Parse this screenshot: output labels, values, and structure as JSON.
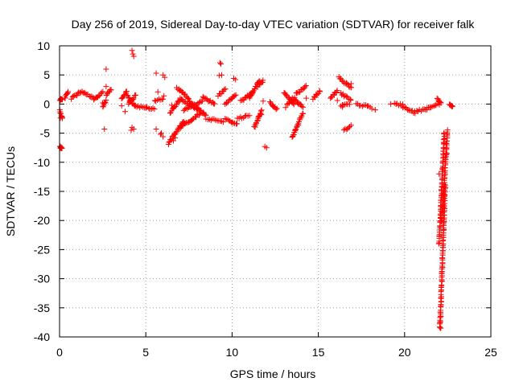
{
  "chart_data": {
    "type": "scatter",
    "title": "Day 256 of 2019, Sidereal Day-to-day VTEC variation (SDTVAR) for receiver falk",
    "xlabel": "GPS time / hours",
    "ylabel": "SDTVAR / TECUs",
    "xlim": [
      0,
      25
    ],
    "ylim": [
      -40,
      10
    ],
    "xticks": [
      0,
      5,
      10,
      15,
      20,
      25
    ],
    "yticks": [
      -40,
      -35,
      -30,
      -25,
      -20,
      -15,
      -10,
      -5,
      0,
      5,
      10
    ],
    "xtick_labels": [
      "0",
      "5",
      "10",
      "15",
      "20",
      "25"
    ],
    "ytick_labels": [
      "-40",
      "-35",
      "-30",
      "-25",
      "-20",
      "-15",
      "-10",
      "-5",
      "0",
      "5",
      "10"
    ],
    "grid": true,
    "marker": "+",
    "marker_color": "#ff0000",
    "series": [
      {
        "name": "SDTVAR",
        "segments": [
          {
            "t0": 0.0,
            "t1": 0.15,
            "v0": 0.6,
            "v1": 0.9
          },
          {
            "t0": 0.02,
            "t1": 0.15,
            "v0": -1.0,
            "v1": -2.6
          },
          {
            "t0": 0.0,
            "t1": 0.15,
            "v0": -7.2,
            "v1": -7.6
          },
          {
            "t0": 0.3,
            "t1": 0.5,
            "v0": 1.0,
            "v1": 2.0
          },
          {
            "t0": 0.7,
            "t1": 1.3,
            "v0": 1.0,
            "v1": 2.2
          },
          {
            "t0": 1.3,
            "t1": 2.0,
            "v0": 2.0,
            "v1": 1.0
          },
          {
            "t0": 2.0,
            "t1": 2.5,
            "v0": 0.8,
            "v1": 2.0
          },
          {
            "t0": 2.5,
            "t1": 2.7,
            "v0": -0.5,
            "v1": 0.5
          },
          {
            "t0": 2.7,
            "t1": 3.0,
            "v0": 1.5,
            "v1": 2.5
          },
          {
            "t0": 3.6,
            "t1": 3.9,
            "v0": 0.8,
            "v1": 2.2
          },
          {
            "t0": 3.9,
            "t1": 4.4,
            "v0": 1.5,
            "v1": -0.5
          },
          {
            "t0": 4.0,
            "t1": 4.4,
            "v0": 0.0,
            "v1": 1.5
          },
          {
            "t0": 4.4,
            "t1": 5.0,
            "v0": -0.3,
            "v1": -0.6
          },
          {
            "t0": 5.0,
            "t1": 5.5,
            "v0": -0.5,
            "v1": -0.9
          },
          {
            "t0": 5.5,
            "t1": 6.0,
            "v0": 0.6,
            "v1": 0.9
          },
          {
            "t0": 6.3,
            "t1": 7.2,
            "v0": -6.8,
            "v1": -3.0
          },
          {
            "t0": 6.4,
            "t1": 7.0,
            "v0": -1.5,
            "v1": 0.8
          },
          {
            "t0": 6.8,
            "t1": 7.5,
            "v0": 2.8,
            "v1": 1.0
          },
          {
            "t0": 7.0,
            "t1": 8.2,
            "v0": -4.0,
            "v1": -1.5
          },
          {
            "t0": 7.0,
            "t1": 8.0,
            "v0": 1.0,
            "v1": -1.0
          },
          {
            "t0": 7.2,
            "t1": 8.3,
            "v0": -1.0,
            "v1": 0.5
          },
          {
            "t0": 7.5,
            "t1": 8.5,
            "v0": 0.5,
            "v1": -2.0
          },
          {
            "t0": 8.3,
            "t1": 9.0,
            "v0": 1.2,
            "v1": 0.0
          },
          {
            "t0": 8.5,
            "t1": 9.5,
            "v0": -2.5,
            "v1": -3.0
          },
          {
            "t0": 9.2,
            "t1": 9.6,
            "v0": 1.5,
            "v1": 2.5
          },
          {
            "t0": 9.6,
            "t1": 10.3,
            "v0": -2.5,
            "v1": -3.5
          },
          {
            "t0": 9.6,
            "t1": 10.2,
            "v0": 0.0,
            "v1": 1.5
          },
          {
            "t0": 10.3,
            "t1": 11.0,
            "v0": -2.5,
            "v1": -2.0
          },
          {
            "t0": 10.5,
            "t1": 11.2,
            "v0": 0.5,
            "v1": 2.0
          },
          {
            "t0": 11.0,
            "t1": 11.6,
            "v0": 1.0,
            "v1": 4.0
          },
          {
            "t0": 11.3,
            "t1": 11.7,
            "v0": -4.0,
            "v1": -1.0
          },
          {
            "t0": 11.5,
            "t1": 11.8,
            "v0": 3.0,
            "v1": 4.0
          },
          {
            "t0": 12.2,
            "t1": 12.6,
            "v0": 0.3,
            "v1": -0.9
          },
          {
            "t0": 13.0,
            "t1": 13.6,
            "v0": 2.0,
            "v1": 0.0
          },
          {
            "t0": 13.2,
            "t1": 13.6,
            "v0": 0.0,
            "v1": 1.0
          },
          {
            "t0": 13.5,
            "t1": 14.1,
            "v0": 1.0,
            "v1": -0.5
          },
          {
            "t0": 13.7,
            "t1": 14.3,
            "v0": 1.8,
            "v1": 3.0
          },
          {
            "t0": 13.5,
            "t1": 14.1,
            "v0": -5.8,
            "v1": -1.5
          },
          {
            "t0": 14.7,
            "t1": 15.1,
            "v0": 1.0,
            "v1": 2.3
          },
          {
            "t0": 15.7,
            "t1": 16.1,
            "v0": 1.0,
            "v1": 2.3
          },
          {
            "t0": 16.2,
            "t1": 16.9,
            "v0": 4.5,
            "v1": 2.8
          },
          {
            "t0": 16.3,
            "t1": 16.9,
            "v0": 1.8,
            "v1": 0.8
          },
          {
            "t0": 16.3,
            "t1": 16.8,
            "v0": -0.2,
            "v1": 0.0
          },
          {
            "t0": 16.5,
            "t1": 16.9,
            "v0": -4.5,
            "v1": -3.8
          },
          {
            "t0": 17.2,
            "t1": 18.0,
            "v0": 0.0,
            "v1": -0.5
          },
          {
            "t0": 19.4,
            "t1": 19.9,
            "v0": 0.0,
            "v1": -0.2
          },
          {
            "t0": 19.9,
            "t1": 20.6,
            "v0": -0.5,
            "v1": -1.5
          },
          {
            "t0": 20.6,
            "t1": 21.3,
            "v0": -1.3,
            "v1": -0.8
          },
          {
            "t0": 21.3,
            "t1": 22.0,
            "v0": -0.7,
            "v1": 0.0
          },
          {
            "t0": 21.9,
            "t1": 22.1,
            "v0": 1.0,
            "v1": 0.2
          },
          {
            "t0": 22.6,
            "t1": 22.8,
            "v0": -0.2,
            "v1": -0.5
          },
          {
            "t0": 22.15,
            "t1": 22.5,
            "v0": -20.0,
            "v1": -4.5
          },
          {
            "t0": 22.05,
            "t1": 22.35,
            "v0": -38.5,
            "v1": -14.0
          },
          {
            "t0": 22.0,
            "t1": 22.3,
            "v0": -24.0,
            "v1": -5.0
          }
        ],
        "points": [
          [
            0.05,
            -2.4
          ],
          [
            0.1,
            -7.4
          ],
          [
            0.05,
            -7.6
          ],
          [
            2.7,
            6.0
          ],
          [
            2.7,
            3.0
          ],
          [
            2.6,
            -4.3
          ],
          [
            2.5,
            0.2
          ],
          [
            3.6,
            -0.3
          ],
          [
            3.8,
            -1.3
          ],
          [
            4.2,
            9.2
          ],
          [
            4.25,
            8.6
          ],
          [
            4.3,
            8.2
          ],
          [
            4.2,
            -4.0
          ],
          [
            4.3,
            -4.3
          ],
          [
            4.15,
            -4.5
          ],
          [
            5.6,
            5.3
          ],
          [
            5.7,
            2.1
          ],
          [
            5.6,
            -4.3
          ],
          [
            5.9,
            -5.0
          ],
          [
            6.0,
            -5.6
          ],
          [
            5.85,
            -5.2
          ],
          [
            6.0,
            5.0
          ],
          [
            6.1,
            4.6
          ],
          [
            6.05,
            1.4
          ],
          [
            6.6,
            -6.3
          ],
          [
            6.7,
            -5.8
          ],
          [
            6.5,
            -0.2
          ],
          [
            9.3,
            7.1
          ],
          [
            9.35,
            6.9
          ],
          [
            9.25,
            4.9
          ],
          [
            9.4,
            5.0
          ],
          [
            10.1,
            4.4
          ],
          [
            10.2,
            4.2
          ],
          [
            11.9,
            -7.3
          ],
          [
            12.0,
            -7.5
          ],
          [
            11.8,
            0.5
          ],
          [
            11.7,
            -1.8
          ],
          [
            13.1,
            -0.6
          ],
          [
            14.3,
            1.0
          ],
          [
            16.4,
            -0.5
          ],
          [
            16.1,
            0.6
          ],
          [
            16.9,
            3.5
          ],
          [
            18.1,
            -0.8
          ],
          [
            18.3,
            -1.0
          ],
          [
            19.2,
            0.0
          ],
          [
            22.4,
            -6.8
          ],
          [
            22.45,
            -8.5
          ],
          [
            22.0,
            -12.0
          ],
          [
            22.1,
            -36.5
          ],
          [
            22.05,
            -37.5
          ],
          [
            22.1,
            -38.5
          ]
        ]
      }
    ]
  }
}
